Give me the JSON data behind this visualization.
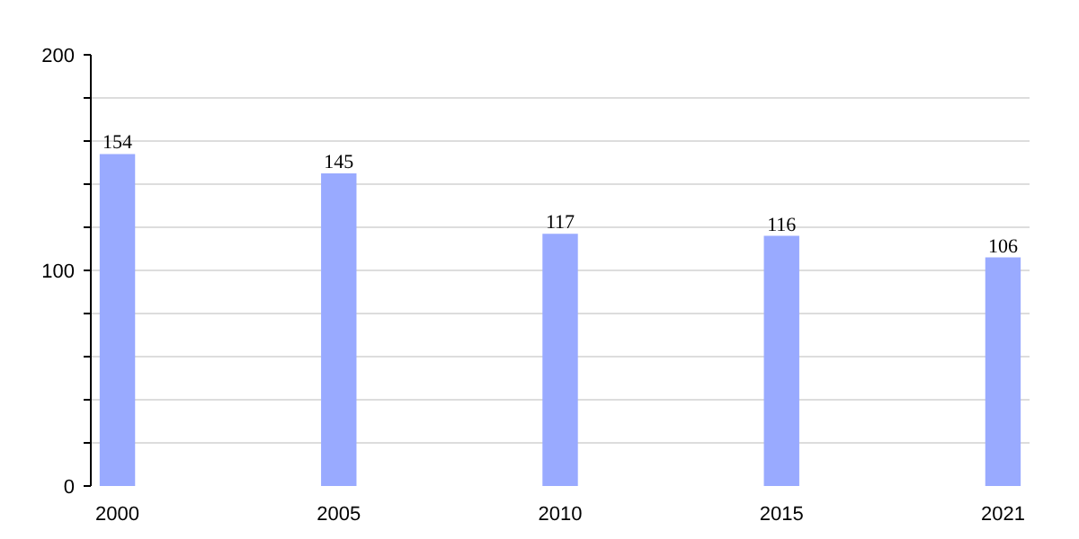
{
  "chart_data": {
    "type": "bar",
    "categories": [
      "2000",
      "2005",
      "2010",
      "2015",
      "2021"
    ],
    "values": [
      154,
      145,
      117,
      116,
      106
    ],
    "color": "#99aaff",
    "ylim": [
      0,
      200
    ],
    "yticks": [
      0,
      {
        "value": 20,
        "label": null
      },
      {
        "value": 40,
        "label": null
      },
      {
        "value": 60,
        "label": null
      },
      {
        "value": 80,
        "label": null
      },
      100,
      {
        "value": 120,
        "label": null
      },
      {
        "value": 140,
        "label": null
      },
      {
        "value": 160,
        "label": null
      },
      {
        "value": 180,
        "label": null
      },
      200
    ],
    "grid": "y",
    "data_labels": true
  }
}
